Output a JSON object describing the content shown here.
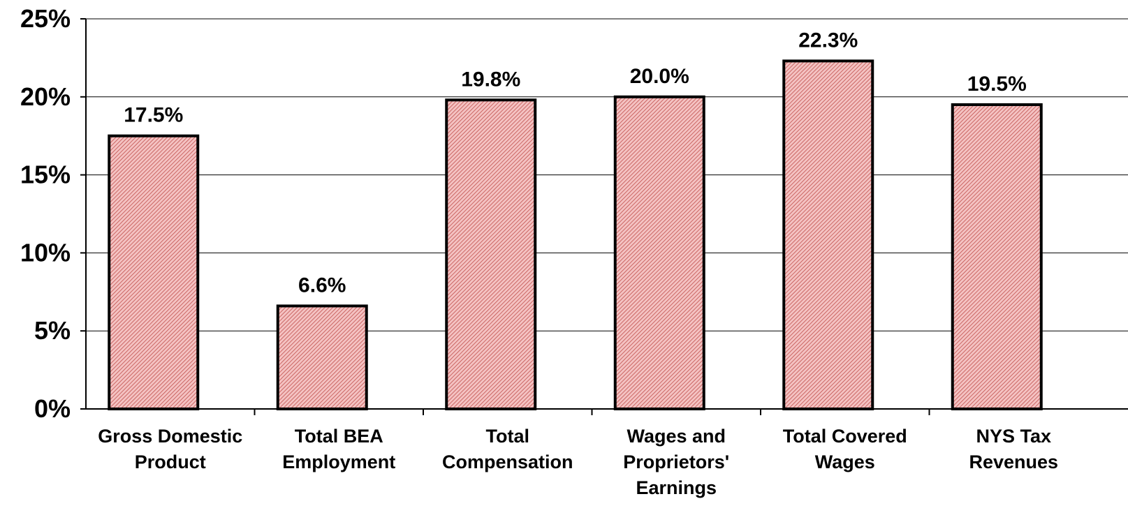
{
  "chart_data": {
    "type": "bar",
    "categories": [
      [
        "Gross Domestic",
        "Product"
      ],
      [
        "Total BEA",
        "Employment"
      ],
      [
        "Total",
        "Compensation"
      ],
      [
        "Wages and",
        "Proprietors'",
        "Earnings"
      ],
      [
        "Total Covered",
        "Wages"
      ],
      [
        "NYS Tax",
        "Revenues"
      ]
    ],
    "values": [
      17.5,
      6.6,
      19.8,
      20.0,
      22.3,
      19.5
    ],
    "data_labels": [
      "17.5%",
      "6.6%",
      "19.8%",
      "20.0%",
      "22.3%",
      "19.5%"
    ],
    "yticks": [
      "0%",
      "5%",
      "10%",
      "15%",
      "20%",
      "25%"
    ],
    "ylim": [
      0,
      25
    ],
    "grid": true,
    "colors": {
      "bar_fill": "#f4c2c2",
      "bar_hatch": "#c0504d",
      "bar_stroke": "#000000",
      "grid": "#000000"
    },
    "title": "",
    "xlabel": "",
    "ylabel": ""
  }
}
